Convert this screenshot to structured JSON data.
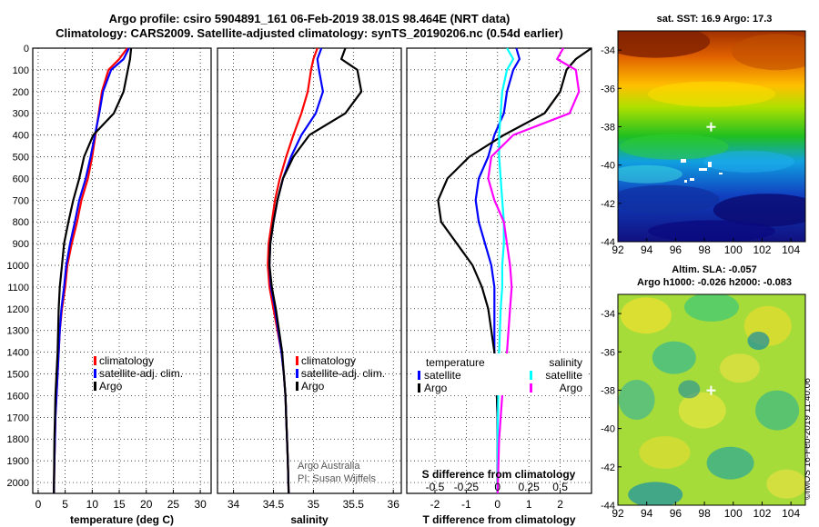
{
  "header": {
    "title_line1": "Argo profile: csiro 5904891_161 06-Feb-2019 38.01S 98.464E (NRT data)",
    "title_line2": "Climatology: CARS2009. Satellite-adjusted climatology: synTS_20190206.nc (0.54d earlier)"
  },
  "colors": {
    "climatology": "#ff0000",
    "satellite": "#0000ff",
    "argo": "#000000",
    "satellite_salinity": "#00ffff",
    "climatology_salinity": "#ff00ff"
  },
  "footer": {
    "credit_line1": "Argo Australia",
    "credit_line2": "PI: Susan Wijffels",
    "stamp": "©IMOS 16-Feb-2019 11:40:06"
  },
  "maps": {
    "sst_title": "sat. SST: 16.9 Argo: 17.3",
    "sla_title1": "Altim. SLA: -0.057",
    "sla_title2": "Argo h1000: -0.026 h2000: -0.083",
    "lon_ticks": [
      "92",
      "94",
      "96",
      "98",
      "100",
      "102",
      "104"
    ],
    "lat_ticks": [
      "-34",
      "-36",
      "-38",
      "-40",
      "-42",
      "-44"
    ]
  },
  "chart_data": [
    {
      "type": "line",
      "name": "temperature",
      "xlabel": "temperature (deg C)",
      "ylabel": "",
      "xlim": [
        -1,
        32
      ],
      "ylim": [
        2050,
        0
      ],
      "xticks": [
        0,
        5,
        10,
        15,
        20,
        25,
        30
      ],
      "yticks": [
        0,
        100,
        200,
        300,
        400,
        500,
        600,
        700,
        800,
        900,
        1000,
        1100,
        1200,
        1300,
        1400,
        1500,
        1600,
        1700,
        1800,
        1900,
        2000
      ],
      "legend": [
        "climatology",
        "satellite-adj. clim.",
        "Argo"
      ],
      "series": [
        {
          "name": "climatology",
          "color": "#ff0000",
          "x": [
            16.5,
            15.0,
            13.0,
            11.8,
            11.2,
            10.6,
            10.0,
            9.2,
            8.0,
            7.2,
            6.2,
            5.4,
            5.0,
            4.4,
            4.0,
            3.8,
            3.6,
            3.4,
            3.2,
            3.1,
            3.0,
            2.9
          ],
          "y": [
            0,
            50,
            100,
            200,
            300,
            400,
            500,
            600,
            700,
            800,
            900,
            1000,
            1100,
            1200,
            1300,
            1400,
            1500,
            1600,
            1700,
            1800,
            1900,
            2050
          ]
        },
        {
          "name": "satellite-adj. clim.",
          "color": "#0000ff",
          "x": [
            16.8,
            15.8,
            13.5,
            12.0,
            11.3,
            10.5,
            9.7,
            8.8,
            7.6,
            6.8,
            5.9,
            5.2,
            4.8,
            4.3,
            4.0,
            3.8,
            3.6,
            3.4,
            3.2,
            3.1,
            3.0,
            2.9
          ],
          "y": [
            0,
            50,
            100,
            200,
            300,
            400,
            500,
            600,
            700,
            800,
            900,
            1000,
            1100,
            1200,
            1300,
            1400,
            1500,
            1600,
            1700,
            1800,
            1900,
            2050
          ]
        },
        {
          "name": "Argo",
          "color": "#000000",
          "x": [
            17.2,
            17.0,
            16.6,
            15.8,
            14.0,
            10.2,
            8.5,
            7.6,
            6.5,
            5.6,
            4.8,
            4.4,
            4.0,
            3.8,
            3.6,
            3.4,
            3.2,
            3.1,
            3.0,
            2.9
          ],
          "y": [
            0,
            50,
            100,
            200,
            300,
            400,
            500,
            600,
            700,
            800,
            900,
            1000,
            1100,
            1200,
            1400,
            1500,
            1600,
            1700,
            1800,
            2050
          ]
        }
      ]
    },
    {
      "type": "line",
      "name": "salinity",
      "xlabel": "salinity",
      "ylabel": "",
      "xlim": [
        33.8,
        36.1
      ],
      "ylim": [
        2050,
        0
      ],
      "xticks": [
        34,
        34.5,
        35,
        35.5,
        36
      ],
      "legend": [
        "climatology",
        "satellite-adj. clim.",
        "Argo"
      ],
      "series": [
        {
          "name": "climatology",
          "color": "#ff0000",
          "x": [
            35.05,
            35.0,
            34.97,
            34.93,
            34.85,
            34.75,
            34.66,
            34.58,
            34.52,
            34.48,
            34.44,
            34.43,
            34.45,
            34.5,
            34.55,
            34.6,
            34.63,
            34.65,
            34.66,
            34.67,
            34.68,
            34.69
          ],
          "y": [
            0,
            50,
            100,
            200,
            300,
            400,
            500,
            600,
            700,
            800,
            900,
            1000,
            1100,
            1200,
            1300,
            1400,
            1500,
            1600,
            1700,
            1800,
            1900,
            2050
          ]
        },
        {
          "name": "satellite-adj. clim.",
          "color": "#0000ff",
          "x": [
            35.1,
            35.05,
            35.07,
            35.12,
            35.03,
            34.85,
            34.72,
            34.62,
            34.55,
            34.5,
            34.46,
            34.45,
            34.47,
            34.52,
            34.56,
            34.6,
            34.63,
            34.65,
            34.66,
            34.67,
            34.68,
            34.69
          ],
          "y": [
            0,
            50,
            100,
            200,
            300,
            400,
            500,
            600,
            700,
            800,
            900,
            1000,
            1100,
            1200,
            1300,
            1400,
            1500,
            1600,
            1700,
            1800,
            1900,
            2050
          ]
        },
        {
          "name": "Argo",
          "color": "#000000",
          "x": [
            35.4,
            35.35,
            35.55,
            35.6,
            35.4,
            34.95,
            34.75,
            34.62,
            34.55,
            34.5,
            34.46,
            34.45,
            34.48,
            34.53,
            34.57,
            34.61,
            34.63,
            34.65,
            34.66,
            34.67,
            34.68,
            34.69
          ],
          "y": [
            0,
            50,
            100,
            200,
            300,
            400,
            500,
            600,
            700,
            800,
            900,
            1000,
            1100,
            1200,
            1300,
            1400,
            1500,
            1600,
            1700,
            1800,
            1900,
            2050
          ]
        }
      ]
    },
    {
      "type": "line",
      "name": "differences",
      "xlabel": "T difference from climatology",
      "xlabel_top": "S difference from climatology",
      "xlim": [
        -2.9,
        3.0
      ],
      "ylim": [
        2050,
        0
      ],
      "xticks": [
        -2,
        -1,
        0,
        1,
        2
      ],
      "top_ticks": {
        "labels": [
          "-0.5",
          "-0.25",
          "0",
          "0.25",
          "0.5"
        ],
        "positions": [
          -2,
          -1,
          0,
          1,
          2
        ]
      },
      "legend_titles": [
        "temperature",
        "salinity"
      ],
      "legend": [
        "satellite",
        "Argo",
        "satellite",
        "Argo"
      ],
      "series": [
        {
          "name": "temperature satellite",
          "color": "#0000ff",
          "x": [
            0.6,
            0.7,
            0.5,
            0.3,
            0.2,
            -0.1,
            -0.3,
            -0.6,
            -0.7,
            -0.6,
            -0.4,
            -0.2,
            -0.1,
            -0.1,
            -0.1,
            -0.05,
            0,
            0,
            0
          ],
          "y": [
            0,
            50,
            100,
            200,
            300,
            400,
            500,
            600,
            700,
            800,
            900,
            1000,
            1100,
            1200,
            1400,
            1500,
            1700,
            1900,
            2050
          ]
        },
        {
          "name": "temperature Argo",
          "color": "#000000",
          "x": [
            3.0,
            2.5,
            2.2,
            2.0,
            1.5,
            0.2,
            -0.9,
            -1.6,
            -1.9,
            -1.8,
            -1.3,
            -0.8,
            -0.5,
            -0.3,
            -0.1,
            -0.05,
            0,
            0,
            0
          ],
          "y": [
            0,
            50,
            100,
            200,
            300,
            400,
            500,
            600,
            700,
            800,
            900,
            1000,
            1100,
            1200,
            1400,
            1500,
            1700,
            1900,
            2050
          ]
        },
        {
          "name": "salinity satellite",
          "color": "#00ffff",
          "x": [
            0.3,
            0.5,
            0.3,
            0.15,
            0.1,
            0.05,
            0.05,
            0.1,
            0.15,
            0.2,
            0.2,
            0.15,
            0.15,
            0.1,
            0.05,
            0.02,
            0,
            0
          ],
          "y": [
            0,
            50,
            100,
            200,
            300,
            400,
            500,
            600,
            700,
            800,
            900,
            1000,
            1100,
            1200,
            1400,
            1600,
            1800,
            2050
          ]
        },
        {
          "name": "salinity Argo",
          "color": "#ff00ff",
          "x": [
            2.1,
            1.9,
            2.5,
            2.6,
            2.3,
            0.5,
            -0.2,
            -0.3,
            -0.1,
            0.2,
            0.3,
            0.4,
            0.45,
            0.4,
            0.3,
            0.15,
            0.05,
            0
          ],
          "y": [
            0,
            50,
            100,
            200,
            300,
            400,
            500,
            600,
            700,
            800,
            900,
            1000,
            1100,
            1200,
            1400,
            1600,
            1800,
            2050
          ]
        }
      ]
    }
  ]
}
